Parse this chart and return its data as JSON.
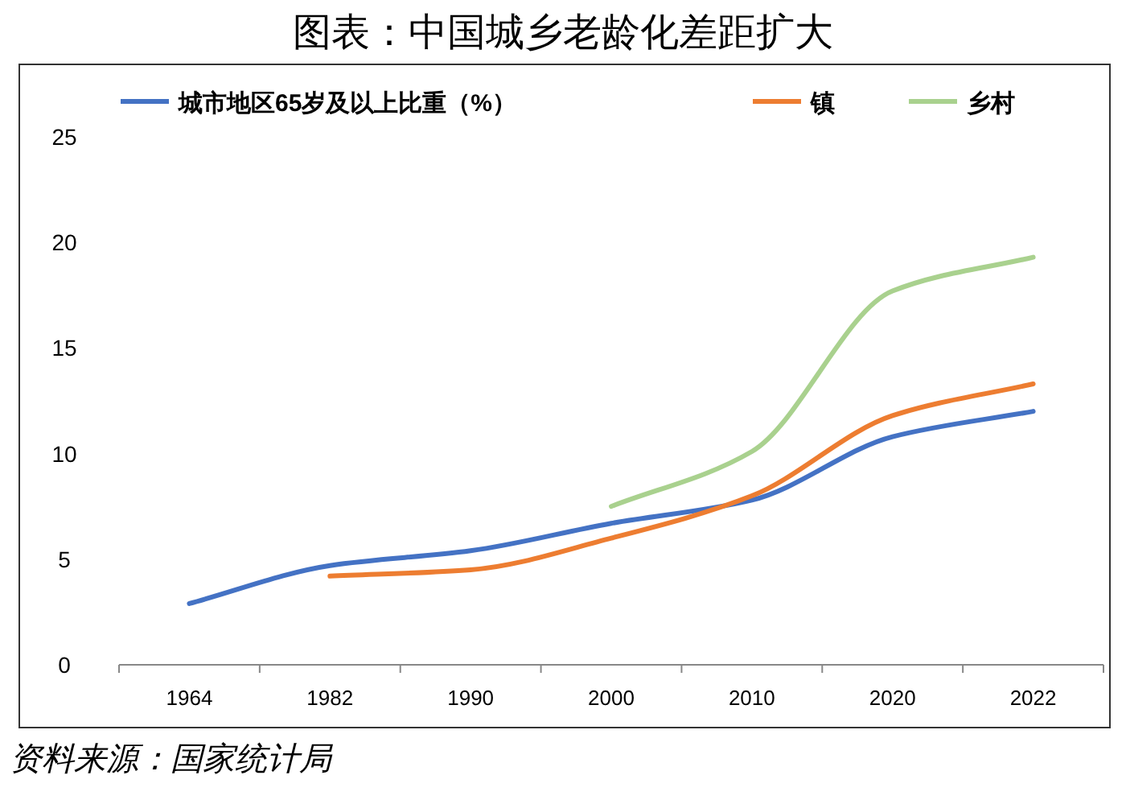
{
  "chart_data": {
    "type": "line",
    "title": "图表：中国城乡老龄化差距扩大",
    "categories": [
      "1964",
      "1982",
      "1990",
      "2000",
      "2010",
      "2020",
      "2022"
    ],
    "series": [
      {
        "name": "城市地区65岁及以上比重（%）",
        "color": "#4472c4",
        "values": [
          2.9,
          4.7,
          5.4,
          6.7,
          7.8,
          10.8,
          12.0
        ]
      },
      {
        "name": "镇",
        "color": "#ed7d31",
        "values": [
          null,
          4.2,
          4.5,
          6.0,
          8.0,
          11.8,
          13.3
        ]
      },
      {
        "name": "乡村",
        "color": "#a9d18e",
        "values": [
          null,
          null,
          null,
          7.5,
          10.1,
          17.7,
          19.3
        ]
      }
    ],
    "ylim": [
      0,
      25
    ],
    "yticks": [
      0,
      5,
      10,
      15,
      20,
      25
    ],
    "grid": false,
    "legend": "top",
    "marker": "none",
    "annotations": [
      "资料来源：国家统计局"
    ]
  }
}
